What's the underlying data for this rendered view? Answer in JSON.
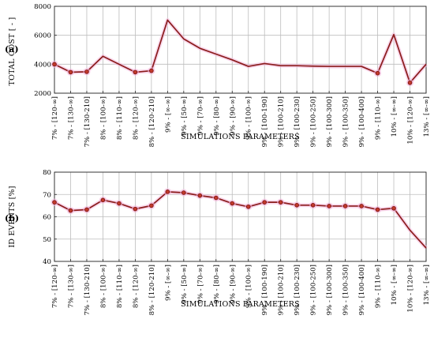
{
  "colors": {
    "line": "#8b1c1c",
    "marker": "#c0392b",
    "highlight": "#f4b8dc",
    "grid": "#bdbdbd"
  },
  "chart_data": [
    {
      "panel_label": "(a)",
      "type": "line",
      "ylabel": "TOTAL COST [ - ]",
      "xlabel": "SIMULATIONS PARAMETERS",
      "ylim": [
        2000,
        8000
      ],
      "yticks": [
        2000,
        4000,
        6000,
        8000
      ],
      "grid": true,
      "categories": [
        "7% - [120-∞]",
        "7% - [130-∞]",
        "7% - [130-210]",
        "8% - [100-∞]",
        "8% - [110-∞]",
        "8% - [120-∞]",
        "8% - [120-210]",
        "9% - [∞-∞]",
        "9% - [50-∞]",
        "9% - [70-∞]",
        "9% - [80-∞]",
        "9% - [90-∞]",
        "9% - [100-∞]",
        "9% - [100-190]",
        "9% - [100-210]",
        "9% - [100-230]",
        "9% - [100-250]",
        "9% - [100-300]",
        "9% - [100-350]",
        "9% - [100-400]",
        "9% - [110-∞]",
        "10% - [∞-∞]",
        "10% - [120-∞]",
        "13% - [∞-∞]"
      ],
      "values": [
        4000,
        3450,
        3480,
        4550,
        4000,
        3450,
        3550,
        7050,
        5750,
        5100,
        4700,
        4300,
        3850,
        4050,
        3900,
        3900,
        3870,
        3850,
        3850,
        3850,
        3380,
        6050,
        2720,
        4000
      ],
      "markers": [
        0,
        1,
        2,
        5,
        6,
        20,
        22
      ]
    },
    {
      "panel_label": "(b)",
      "type": "line",
      "ylabel": "ID EVENTS [%]",
      "xlabel": "SIMULATIONS PARAMETERS",
      "ylim": [
        40,
        80
      ],
      "yticks": [
        40,
        50,
        60,
        70,
        80
      ],
      "grid": true,
      "categories": [
        "7% - [120-∞]",
        "7% - [130-∞]",
        "7% - [130-210]",
        "8% - [100-∞]",
        "8% - [110-∞]",
        "8% - [120-∞]",
        "8% - [120-210]",
        "9% - [∞-∞]",
        "9% - [50-∞]",
        "9% - [70-∞]",
        "9% - [80-∞]",
        "9% - [90-∞]",
        "9% - [100-∞]",
        "9% - [100-190]",
        "9% - [100-210]",
        "9% - [100-230]",
        "9% - [100-250]",
        "9% - [100-300]",
        "9% - [100-350]",
        "9% - [100-400]",
        "9% - [110-∞]",
        "10% - [∞-∞]",
        "10% - [120-∞]",
        "13% - [∞-∞]"
      ],
      "values": [
        66.5,
        62.8,
        63.2,
        67.5,
        66.0,
        63.5,
        65.0,
        71.2,
        70.8,
        69.5,
        68.5,
        66.0,
        64.5,
        66.5,
        66.5,
        65.2,
        65.2,
        64.8,
        64.8,
        64.8,
        63.2,
        63.8,
        54.0,
        46.0
      ],
      "markers": [
        0,
        1,
        2,
        3,
        4,
        5,
        6,
        7,
        8,
        9,
        10,
        11,
        12,
        13,
        14,
        15,
        16,
        17,
        18,
        19,
        20,
        21
      ]
    }
  ]
}
